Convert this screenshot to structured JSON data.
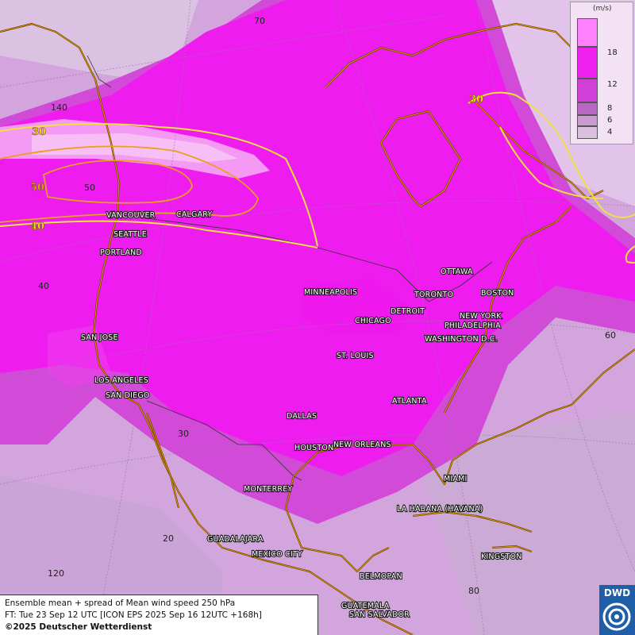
{
  "legend": {
    "unit": "(m/s)",
    "ticks": [
      "18",
      "12",
      "8",
      "6",
      "4"
    ],
    "colors": [
      "#ff80ff",
      "#f020f0",
      "#d040d8",
      "#b868c4",
      "#c89ad0",
      "#dcc0e0"
    ]
  },
  "info": {
    "line1": "Ensemble mean + spread of Mean wind speed 250 hPa",
    "line2": "FT: Tue 23 Sep 12 UTC [ICON EPS 2025 Sep 16 12UTC +168h]",
    "line3": "©2025 Deutscher Wetterdienst"
  },
  "logo": {
    "text": "DWD"
  },
  "contours": [
    {
      "label": "30"
    },
    {
      "label": "50"
    },
    {
      "label": "40"
    },
    {
      "label": "30"
    }
  ],
  "grid_labels": [
    "70",
    "140",
    "50",
    "40",
    "30",
    "20",
    "120",
    "60",
    "80"
  ],
  "cities": [
    "VANCOUVER",
    "CALGARY",
    "SEATTLE",
    "PORTLAND",
    "MINNEAPOLIS",
    "OTTAWA",
    "TORONTO",
    "BOSTON",
    "DETROIT",
    "CHICAGO",
    "NEW YORK",
    "PHILADELPHIA",
    "WASHINGTON D.C.",
    "SAN JOSE",
    "ST. LOUIS",
    "LOS ANGELES",
    "SAN DIEGO",
    "ATLANTA",
    "DALLAS",
    "HOUSTON",
    "NEW ORLEANS",
    "MIAMI",
    "MONTERREY",
    "LA HABANA (HAVANA)",
    "GUADALAJARA",
    "MEXICO CITY",
    "KINGSTON",
    "BELMOPAN",
    "GUATEMALA",
    "SAN SALVADOR"
  ],
  "colors": {
    "contour_line": "#f0e040",
    "contour_50": "#e8a020",
    "coastline": "#e0a000"
  }
}
